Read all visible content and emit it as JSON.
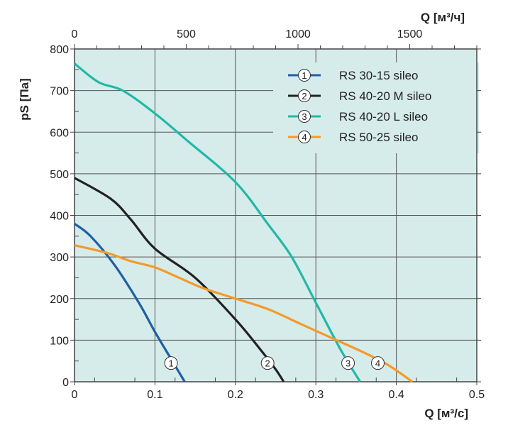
{
  "chart_data": {
    "type": "line",
    "xlabel": "Q [м³/с]",
    "ylabel": "pS [Па]",
    "x2label": "Q [м³/ч]",
    "xlim": [
      0,
      0.5
    ],
    "ylim": [
      0,
      800
    ],
    "x2lim": [
      0,
      1800
    ],
    "xticks": [
      "0",
      "0.1",
      "0.2",
      "0.3",
      "0.4",
      "0.5"
    ],
    "yticks": [
      "0",
      "100",
      "200",
      "300",
      "400",
      "500",
      "600",
      "700",
      "800"
    ],
    "x2ticks": [
      "0",
      "500",
      "1000",
      "1500"
    ],
    "grid": true,
    "background": "#d6ecea",
    "legend_position": "top-right",
    "series": [
      {
        "name": "RS 30-15 sileo",
        "marker": "1",
        "color": "#1f5fa6",
        "x": [
          0,
          0.02,
          0.05,
          0.08,
          0.1,
          0.12,
          0.137
        ],
        "y": [
          380,
          350,
          280,
          190,
          120,
          55,
          0
        ]
      },
      {
        "name": "RS 40-20 M sileo",
        "marker": "2",
        "color": "#222222",
        "x": [
          0,
          0.045,
          0.07,
          0.1,
          0.15,
          0.2,
          0.23,
          0.25,
          0.26
        ],
        "y": [
          490,
          440,
          390,
          320,
          250,
          150,
          80,
          30,
          0
        ]
      },
      {
        "name": "RS 40-20 L sileo",
        "marker": "3",
        "color": "#22b8a8",
        "x": [
          0,
          0.03,
          0.06,
          0.1,
          0.14,
          0.2,
          0.24,
          0.27,
          0.3,
          0.33,
          0.355
        ],
        "y": [
          765,
          720,
          700,
          645,
          580,
          480,
          380,
          300,
          190,
          80,
          0
        ]
      },
      {
        "name": "RS 50-25 sileo",
        "marker": "4",
        "color": "#f39a2b",
        "x": [
          0,
          0.04,
          0.07,
          0.1,
          0.13,
          0.16,
          0.2,
          0.24,
          0.28,
          0.32,
          0.36,
          0.39,
          0.42
        ],
        "y": [
          328,
          310,
          290,
          275,
          250,
          225,
          200,
          175,
          140,
          105,
          70,
          40,
          0
        ]
      }
    ],
    "curve_labels": [
      {
        "marker": "1",
        "x": 0.12,
        "y": 45
      },
      {
        "marker": "2",
        "x": 0.24,
        "y": 45
      },
      {
        "marker": "3",
        "x": 0.34,
        "y": 45
      },
      {
        "marker": "4",
        "x": 0.377,
        "y": 45
      }
    ]
  }
}
